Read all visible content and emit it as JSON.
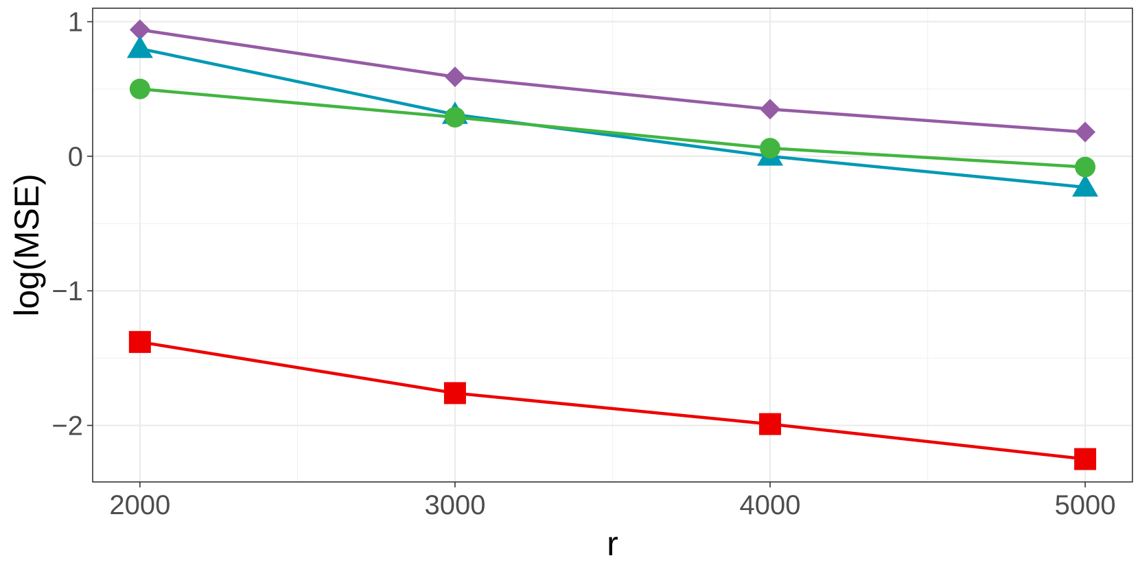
{
  "chart_data": {
    "type": "line",
    "title": "",
    "xlabel": "r",
    "ylabel": "log(MSE)",
    "x": [
      2000,
      3000,
      4000,
      5000
    ],
    "xlim": [
      1850,
      5150
    ],
    "ylim": [
      -2.42,
      1.1
    ],
    "x_ticks": [
      2000,
      3000,
      4000,
      5000
    ],
    "x_tick_labels": [
      "2000",
      "3000",
      "4000",
      "5000"
    ],
    "y_ticks": [
      -2,
      -1,
      0,
      1
    ],
    "y_tick_labels": [
      "−2",
      "−1",
      "0",
      "1"
    ],
    "grid": true,
    "legend": "none",
    "series": [
      {
        "marker": "diamond",
        "color": "#955ba5",
        "values": [
          0.94,
          0.59,
          0.35,
          0.18
        ]
      },
      {
        "marker": "triangle",
        "color": "#0099b4",
        "values": [
          0.8,
          0.31,
          0.0,
          -0.23
        ]
      },
      {
        "marker": "circle",
        "color": "#42b540",
        "values": [
          0.5,
          0.29,
          0.06,
          -0.08
        ]
      },
      {
        "marker": "square",
        "color": "#ed0000",
        "values": [
          -1.38,
          -1.76,
          -1.99,
          -2.25
        ]
      }
    ]
  }
}
